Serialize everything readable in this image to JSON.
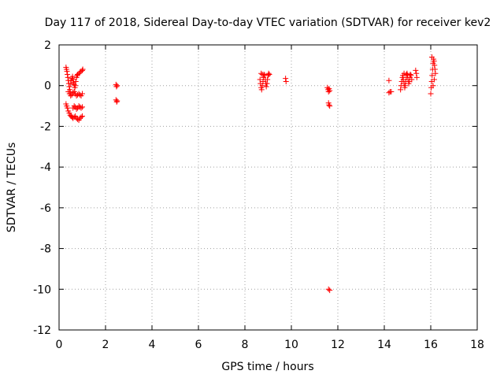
{
  "chart_data": {
    "type": "scatter",
    "title": "Day 117 of 2018, Sidereal Day-to-day VTEC variation (SDTVAR) for receiver kev2",
    "xlabel": "GPS time / hours",
    "ylabel": "SDTVAR / TECUs",
    "xlim": [
      0,
      18
    ],
    "ylim": [
      -12,
      2
    ],
    "xticks": [
      0,
      2,
      4,
      6,
      8,
      10,
      12,
      14,
      16,
      18
    ],
    "yticks": [
      2,
      0,
      -2,
      -4,
      -6,
      -8,
      -10,
      -12
    ],
    "grid": true,
    "marker": "plus",
    "color": "#ff0000",
    "series": [
      {
        "name": "kev2",
        "points": [
          [
            0.3,
            0.9
          ],
          [
            0.32,
            0.8
          ],
          [
            0.34,
            0.7
          ],
          [
            0.36,
            0.55
          ],
          [
            0.38,
            0.4
          ],
          [
            0.4,
            0.25
          ],
          [
            0.42,
            0.1
          ],
          [
            0.44,
            -0.05
          ],
          [
            0.46,
            -0.2
          ],
          [
            0.48,
            -0.3
          ],
          [
            0.5,
            0.1
          ],
          [
            0.52,
            0.25
          ],
          [
            0.55,
            0.35
          ],
          [
            0.58,
            0.45
          ],
          [
            0.6,
            0.3
          ],
          [
            0.62,
            0.15
          ],
          [
            0.65,
            0.05
          ],
          [
            0.68,
            -0.1
          ],
          [
            0.7,
            0.0
          ],
          [
            0.72,
            0.2
          ],
          [
            0.75,
            0.4
          ],
          [
            0.78,
            0.5
          ],
          [
            0.8,
            0.55
          ],
          [
            0.85,
            0.6
          ],
          [
            0.9,
            0.65
          ],
          [
            0.95,
            0.7
          ],
          [
            1.0,
            0.75
          ],
          [
            1.02,
            0.8
          ],
          [
            0.4,
            -0.3
          ],
          [
            0.45,
            -0.4
          ],
          [
            0.5,
            -0.5
          ],
          [
            0.55,
            -0.45
          ],
          [
            0.6,
            -0.35
          ],
          [
            0.65,
            -0.3
          ],
          [
            0.7,
            -0.4
          ],
          [
            0.75,
            -0.5
          ],
          [
            0.8,
            -0.45
          ],
          [
            0.85,
            -0.4
          ],
          [
            0.9,
            -0.45
          ],
          [
            0.95,
            -0.5
          ],
          [
            1.0,
            -0.4
          ],
          [
            0.3,
            -0.9
          ],
          [
            0.33,
            -1.0
          ],
          [
            0.36,
            -1.1
          ],
          [
            0.4,
            -1.25
          ],
          [
            0.44,
            -1.35
          ],
          [
            0.48,
            -1.45
          ],
          [
            0.52,
            -1.5
          ],
          [
            0.56,
            -1.55
          ],
          [
            0.6,
            -1.6
          ],
          [
            0.65,
            -1.55
          ],
          [
            0.7,
            -1.5
          ],
          [
            0.75,
            -1.6
          ],
          [
            0.8,
            -1.65
          ],
          [
            0.85,
            -1.7
          ],
          [
            0.9,
            -1.6
          ],
          [
            0.95,
            -1.55
          ],
          [
            1.0,
            -1.5
          ],
          [
            0.6,
            -1.1
          ],
          [
            0.65,
            -1.0
          ],
          [
            0.7,
            -1.05
          ],
          [
            0.75,
            -1.15
          ],
          [
            0.8,
            -1.1
          ],
          [
            0.85,
            -1.0
          ],
          [
            0.9,
            -1.05
          ],
          [
            0.95,
            -1.1
          ],
          [
            1.0,
            -1.05
          ],
          [
            2.45,
            0.05
          ],
          [
            2.47,
            -0.05
          ],
          [
            2.5,
            0.0
          ],
          [
            2.45,
            -0.7
          ],
          [
            2.48,
            -0.8
          ],
          [
            2.5,
            -0.75
          ],
          [
            8.65,
            0.3
          ],
          [
            8.67,
            0.1
          ],
          [
            8.7,
            -0.1
          ],
          [
            8.72,
            -0.2
          ],
          [
            8.75,
            0.0
          ],
          [
            8.78,
            0.2
          ],
          [
            8.8,
            0.4
          ],
          [
            8.82,
            0.55
          ],
          [
            8.85,
            0.5
          ],
          [
            8.88,
            0.3
          ],
          [
            8.9,
            0.1
          ],
          [
            8.92,
            -0.05
          ],
          [
            8.95,
            0.1
          ],
          [
            8.97,
            0.3
          ],
          [
            9.0,
            0.5
          ],
          [
            9.02,
            0.6
          ],
          [
            9.05,
            0.55
          ],
          [
            8.7,
            0.6
          ],
          [
            8.75,
            0.55
          ],
          [
            9.75,
            0.35
          ],
          [
            9.77,
            0.2
          ],
          [
            11.55,
            -0.1
          ],
          [
            11.58,
            -0.2
          ],
          [
            11.6,
            -0.3
          ],
          [
            11.62,
            -0.15
          ],
          [
            11.65,
            -0.25
          ],
          [
            11.6,
            -0.85
          ],
          [
            11.62,
            -0.95
          ],
          [
            11.65,
            -1.0
          ],
          [
            11.6,
            -10.0
          ],
          [
            11.65,
            -10.05
          ],
          [
            14.2,
            0.25
          ],
          [
            14.25,
            -0.3
          ],
          [
            14.2,
            -0.35
          ],
          [
            14.3,
            -0.3
          ],
          [
            14.7,
            -0.2
          ],
          [
            14.72,
            0.0
          ],
          [
            14.75,
            0.2
          ],
          [
            14.78,
            0.4
          ],
          [
            14.8,
            0.5
          ],
          [
            14.82,
            0.3
          ],
          [
            14.85,
            0.1
          ],
          [
            14.88,
            -0.1
          ],
          [
            14.9,
            0.0
          ],
          [
            14.92,
            0.2
          ],
          [
            14.95,
            0.4
          ],
          [
            14.98,
            0.6
          ],
          [
            15.0,
            0.5
          ],
          [
            15.02,
            0.3
          ],
          [
            15.05,
            0.1
          ],
          [
            15.08,
            0.2
          ],
          [
            15.1,
            0.4
          ],
          [
            15.12,
            0.55
          ],
          [
            15.15,
            0.5
          ],
          [
            15.18,
            0.3
          ],
          [
            14.85,
            0.6
          ],
          [
            14.95,
            0.55
          ],
          [
            15.35,
            0.75
          ],
          [
            15.38,
            0.6
          ],
          [
            15.4,
            0.4
          ],
          [
            16.0,
            -0.4
          ],
          [
            16.02,
            -0.1
          ],
          [
            16.04,
            0.2
          ],
          [
            16.06,
            0.5
          ],
          [
            16.08,
            0.8
          ],
          [
            16.1,
            1.1
          ],
          [
            16.12,
            1.3
          ],
          [
            16.14,
            1.2
          ],
          [
            16.16,
            1.0
          ],
          [
            16.18,
            0.8
          ],
          [
            16.2,
            0.6
          ],
          [
            16.1,
            0.0
          ],
          [
            16.15,
            0.3
          ],
          [
            16.05,
            1.4
          ]
        ]
      }
    ]
  }
}
